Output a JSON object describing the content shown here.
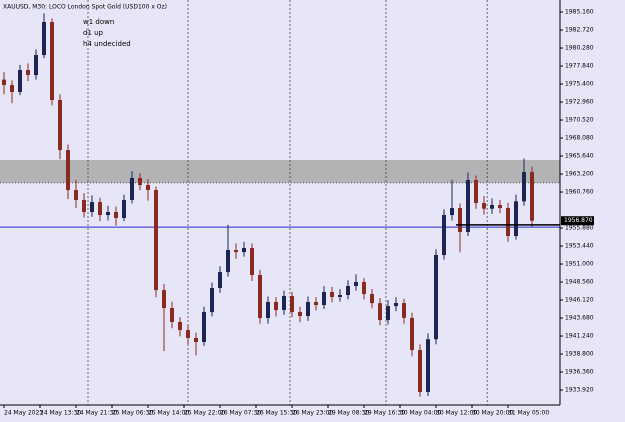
{
  "chart_data": {
    "type": "candlestick",
    "title": "XAUUSD, M30:  LOCO London Spot Gold (USD100 x Oz)",
    "annotations": [
      "w1 down",
      "d1 up",
      "h4 undecided"
    ],
    "open": [
      1976.0,
      1975.26,
      1974.32,
      1977.3,
      1976.62,
      1979.33,
      1983.8,
      1973.23,
      1966.45,
      1961.03,
      1959.68,
      1958.05,
      1959.4,
      1957.64,
      1958.05,
      1957.24,
      1959.68,
      1962.66,
      1961.71,
      1961.03,
      1947.47,
      1945.03,
      1943.14,
      1942.05,
      1940.97,
      1940.43,
      1944.49,
      1947.75,
      1949.91,
      1952.9,
      1952.62,
      1953.17,
      1949.51,
      1943.68,
      1945.85,
      1944.76,
      1946.66,
      1944.49,
      1943.95,
      1945.85,
      1945.44,
      1947.2,
      1946.53,
      1946.8,
      1948.02,
      1948.56,
      1946.93,
      1945.7,
      1943.41,
      1945.3,
      1945.71,
      1943.7,
      1939.34,
      1933.65,
      1940.8,
      1952.22,
      1957.64,
      1958.59,
      1955.34,
      1962.39,
      1959.27,
      1958.5,
      1959.0,
      1958.59,
      1954.8,
      1959.5,
      1963.47
    ],
    "high": [
      1977.0,
      1975.9,
      1978.0,
      1978.2,
      1980.1,
      1985.0,
      1984.3,
      1974.0,
      1967.2,
      1962.4,
      1960.6,
      1960.3,
      1960.0,
      1958.9,
      1958.8,
      1960.4,
      1963.6,
      1963.3,
      1962.5,
      1961.5,
      1948.3,
      1945.9,
      1943.8,
      1942.8,
      1941.7,
      1945.2,
      1948.5,
      1950.7,
      1956.3,
      1953.8,
      1954.0,
      1953.8,
      1950.2,
      1946.6,
      1946.5,
      1947.4,
      1947.2,
      1945.2,
      1946.6,
      1946.5,
      1948.0,
      1947.9,
      1947.6,
      1948.8,
      1949.6,
      1949.1,
      1947.6,
      1946.4,
      1946.1,
      1946.5,
      1946.3,
      1944.4,
      1940.1,
      1941.6,
      1953.0,
      1958.4,
      1962.4,
      1959.2,
      1963.4,
      1963.0,
      1960.2,
      1959.9,
      1959.7,
      1959.3,
      1960.4,
      1965.3,
      1964.2
    ],
    "low": [
      1974.0,
      1972.8,
      1973.9,
      1975.8,
      1976.0,
      1978.9,
      1972.5,
      1965.2,
      1959.8,
      1958.6,
      1957.3,
      1957.4,
      1956.8,
      1956.9,
      1956.2,
      1956.8,
      1959.2,
      1961.0,
      1959.6,
      1946.5,
      1939.2,
      1942.3,
      1941.2,
      1940.1,
      1938.6,
      1939.9,
      1943.9,
      1947.1,
      1949.3,
      1951.7,
      1952.0,
      1948.7,
      1942.9,
      1942.9,
      1943.9,
      1944.1,
      1943.8,
      1943.1,
      1943.3,
      1944.7,
      1944.9,
      1945.8,
      1945.9,
      1946.2,
      1947.4,
      1946.2,
      1945.0,
      1942.7,
      1942.8,
      1944.6,
      1942.9,
      1938.5,
      1933.0,
      1933.1,
      1940.1,
      1951.6,
      1956.9,
      1952.6,
      1954.8,
      1958.5,
      1957.7,
      1957.8,
      1957.9,
      1954.0,
      1954.3,
      1958.9,
      1956.0
    ],
    "close": [
      1975.26,
      1974.32,
      1977.3,
      1976.62,
      1979.33,
      1983.8,
      1973.23,
      1966.45,
      1961.03,
      1959.68,
      1958.05,
      1959.4,
      1957.64,
      1958.05,
      1957.24,
      1959.68,
      1962.66,
      1961.71,
      1961.03,
      1947.47,
      1945.03,
      1943.14,
      1942.05,
      1940.97,
      1940.43,
      1944.49,
      1947.75,
      1949.91,
      1952.9,
      1952.62,
      1953.17,
      1949.51,
      1943.68,
      1945.85,
      1944.76,
      1946.66,
      1944.49,
      1943.95,
      1945.85,
      1945.44,
      1947.2,
      1946.53,
      1946.8,
      1948.02,
      1948.56,
      1946.93,
      1945.7,
      1943.41,
      1945.3,
      1945.71,
      1943.7,
      1939.34,
      1933.65,
      1940.8,
      1952.22,
      1957.64,
      1958.59,
      1955.34,
      1962.39,
      1959.27,
      1958.5,
      1959.0,
      1958.59,
      1954.8,
      1959.5,
      1963.47,
      1956.87
    ],
    "up_color": "#1c2452",
    "down_color": "#8a2a1e",
    "xlim": [
      -0.5,
      69.5
    ],
    "xticks": [
      {
        "value": 0,
        "label": "24 May 2023"
      },
      {
        "value": 4.5,
        "label": "24 May 13:30"
      },
      {
        "value": 9,
        "label": "24 May 21:30"
      },
      {
        "value": 13.5,
        "label": "25 May 06:30"
      },
      {
        "value": 18,
        "label": "25 May 14:00"
      },
      {
        "value": 22.5,
        "label": "25 May 22:00"
      },
      {
        "value": 27,
        "label": "26 May 07:30"
      },
      {
        "value": 31.5,
        "label": "26 May 15:30"
      },
      {
        "value": 36,
        "label": "26 May 23:00"
      },
      {
        "value": 40.5,
        "label": "29 May 08:30"
      },
      {
        "value": 45,
        "label": "29 May 16:30"
      },
      {
        "value": 49.5,
        "label": "30 May 04:00"
      },
      {
        "value": 54,
        "label": "30 May 12:00"
      },
      {
        "value": 58.5,
        "label": "30 May 20:00"
      },
      {
        "value": 63,
        "label": "31 May 05:00"
      }
    ],
    "period_separators": [
      10.5,
      23,
      35.75,
      47.75,
      60.4
    ],
    "ylim": [
      1931.89,
      1986.79
    ],
    "yticks": [
      {
        "value": 1985.16,
        "label": "1985.160"
      },
      {
        "value": 1982.72,
        "label": "1982.720"
      },
      {
        "value": 1980.28,
        "label": "1980.280"
      },
      {
        "value": 1977.84,
        "label": "1977.840"
      },
      {
        "value": 1975.4,
        "label": "1975.400"
      },
      {
        "value": 1972.96,
        "label": "1972.960"
      },
      {
        "value": 1970.52,
        "label": "1970.520"
      },
      {
        "value": 1968.08,
        "label": "1968.080"
      },
      {
        "value": 1965.64,
        "label": "1965.640"
      },
      {
        "value": 1963.2,
        "label": "1963.200"
      },
      {
        "value": 1960.76,
        "label": "1960.760"
      },
      {
        "value": 1955.88,
        "label": "1955.880"
      },
      {
        "value": 1953.44,
        "label": "1953.440"
      },
      {
        "value": 1951,
        "label": "1951.000"
      },
      {
        "value": 1948.56,
        "label": "1948.560"
      },
      {
        "value": 1946.12,
        "label": "1946.120"
      },
      {
        "value": 1943.68,
        "label": "1943.680"
      },
      {
        "value": 1941.24,
        "label": "1941.240"
      },
      {
        "value": 1938.8,
        "label": "1938.800"
      },
      {
        "value": 1936.36,
        "label": "1936.360"
      },
      {
        "value": 1933.92,
        "label": "1933.920"
      }
    ],
    "zone": {
      "from": 1962.0,
      "to": 1965.1,
      "color": "#a9a9a9"
    },
    "hline": {
      "value": 1956.0,
      "color": "#2a2ad0"
    },
    "trend_line": {
      "x": [
        56.5,
        69.5
      ],
      "y": [
        1956.3,
        1956.3
      ]
    },
    "price_label": {
      "value": 1956.87,
      "label": "1956.870"
    }
  }
}
